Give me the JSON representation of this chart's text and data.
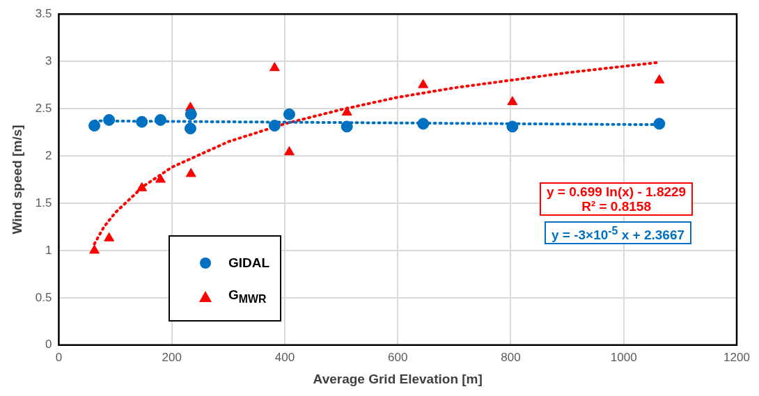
{
  "chart_data": {
    "type": "scatter",
    "xlabel": "Average Grid Elevation [m]",
    "ylabel": "Wind speed [m/s]",
    "xlim": [
      0,
      1200
    ],
    "xticks": [
      0,
      200,
      400,
      600,
      800,
      1000,
      1200
    ],
    "ylim": [
      0,
      3.5
    ],
    "yticks": [
      0,
      0.5,
      1,
      1.5,
      2,
      2.5,
      3,
      3.5
    ],
    "grid": true,
    "legend": "bottom left",
    "series": [
      {
        "name": "GIDAL",
        "color": "#0070c0",
        "marker": "circle",
        "x": [
          63,
          89,
          147,
          180,
          234,
          233,
          382,
          408,
          510,
          645,
          803,
          1063
        ],
        "values": [
          2.32,
          2.38,
          2.36,
          2.38,
          2.44,
          2.29,
          2.32,
          2.44,
          2.31,
          2.34,
          2.31,
          2.34
        ]
      },
      {
        "name": "G$_{MWR}$",
        "color": "#ff0000",
        "marker": "triangle",
        "x": [
          63,
          89,
          147,
          180,
          233,
          234,
          382,
          408,
          510,
          645,
          803,
          1063
        ],
        "values": [
          1.0,
          1.13,
          1.66,
          1.75,
          2.51,
          1.81,
          2.93,
          2.04,
          2.46,
          2.75,
          2.57,
          2.8
        ]
      },
      {
        "type": "line",
        "color": "#0070c0",
        "marker": "none",
        "line_style": "dotted",
        "x": [
          63,
          1063
        ],
        "values": [
          2.37,
          2.33
        ]
      },
      {
        "type": "line",
        "color": "#ff0000",
        "marker": "none",
        "line_style": "dotted",
        "x": [
          63,
          80,
          100,
          150,
          200,
          300,
          400,
          500,
          600,
          700,
          800,
          900,
          1063
        ],
        "values": [
          1.07,
          1.25,
          1.4,
          1.68,
          1.88,
          2.15,
          2.34,
          2.49,
          2.62,
          2.72,
          2.8,
          2.88,
          2.99
        ]
      }
    ],
    "annotations": [
      "y = 0.699 ln(x) - 1.8229",
      "R² = 0.8158",
      "y = -3×10$^{-5}$ x + 2.3667"
    ]
  }
}
